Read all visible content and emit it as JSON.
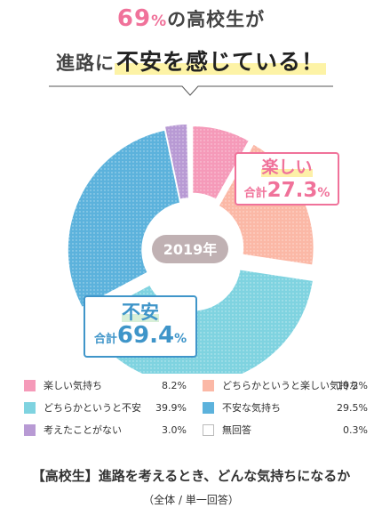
{
  "header": {
    "line1_pct": "69",
    "line1_pct_sign": "%",
    "line1_rest": "の高校生が",
    "line2_pre": "進路に",
    "line2_highlight": "不安を感じている！"
  },
  "center_label": "2019年",
  "callouts": {
    "happy": {
      "label": "楽しい",
      "total_prefix": "合計",
      "total_value": "27.3",
      "unit": "%"
    },
    "anxious": {
      "label": "不安",
      "total_prefix": "合計",
      "total_value": "69.4",
      "unit": "%"
    }
  },
  "chart_data": {
    "type": "pie",
    "donut": true,
    "center_text": "2019年",
    "unit": "%",
    "slices": [
      {
        "name": "楽しい気持ち",
        "value": 8.2,
        "display": "8.2%",
        "color": "#f59ab9"
      },
      {
        "name": "どちらかというと楽しい気持ち",
        "value": 19.2,
        "display": "19.2%",
        "color": "#fbb8a6"
      },
      {
        "name": "どちらかというと不安",
        "value": 39.9,
        "display": "39.9%",
        "color": "#7fd3e0"
      },
      {
        "name": "不安な気持ち",
        "value": 29.5,
        "display": "29.5%",
        "color": "#5cb2dc"
      },
      {
        "name": "考えたことがない",
        "value": 3.0,
        "display": "3.0%",
        "color": "#b89ad4"
      },
      {
        "name": "無回答",
        "value": 0.3,
        "display": "0.3%",
        "color": "#ffffff"
      }
    ],
    "legend_placement": "bottom",
    "groups": [
      {
        "name": "楽しい",
        "total": 27.3
      },
      {
        "name": "不安",
        "total": 69.4
      }
    ]
  },
  "captions": {
    "title": "【高校生】進路を考えるとき、どんな気持ちになるか",
    "subtitle": "（全体 / 単一回答）"
  },
  "colors": {
    "accent_pink": "#f0729a",
    "accent_blue": "#3f95c9",
    "center_badge": "#c0b1b3"
  }
}
